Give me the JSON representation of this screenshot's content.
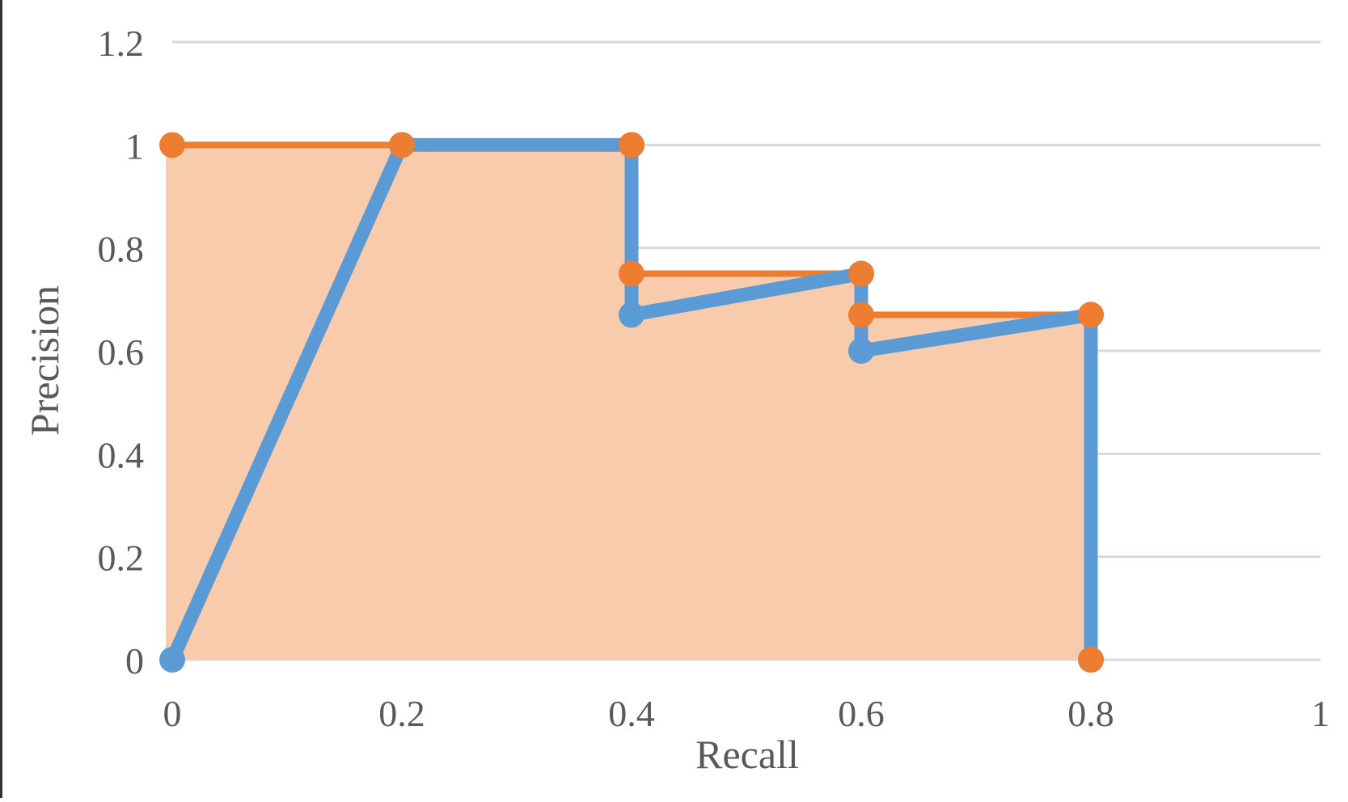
{
  "chart_data": {
    "type": "line",
    "title": "",
    "xlabel": "Recall",
    "ylabel": "Precision",
    "xlim": [
      0,
      1
    ],
    "ylim": [
      0,
      1.2
    ],
    "x_ticks": [
      0,
      0.2,
      0.4,
      0.6,
      0.8,
      1
    ],
    "x_tick_labels": [
      "0",
      "0.2",
      "0.4",
      "0.6",
      "0.8",
      "1"
    ],
    "y_ticks": [
      0,
      0.2,
      0.4,
      0.6,
      0.8,
      1,
      1.2
    ],
    "y_tick_labels": [
      "0",
      "0.2",
      "0.4",
      "0.6",
      "0.8",
      "1",
      "1.2"
    ],
    "grid": "horizontal",
    "legend": "none",
    "series": [
      {
        "style": "area-outline",
        "color": "#ed7d31",
        "fill": "#f8cbad",
        "points": [
          {
            "x": 0,
            "y": 1
          },
          {
            "x": 0.2,
            "y": 1
          },
          {
            "x": 0.4,
            "y": 1
          },
          {
            "x": 0.4,
            "y": 0.75
          },
          {
            "x": 0.6,
            "y": 0.75
          },
          {
            "x": 0.6,
            "y": 0.67
          },
          {
            "x": 0.8,
            "y": 0.67
          },
          {
            "x": 0.8,
            "y": 0
          }
        ]
      },
      {
        "style": "line",
        "color": "#5b9bd5",
        "points": [
          {
            "x": 0,
            "y": 0
          },
          {
            "x": 0.2,
            "y": 1
          },
          {
            "x": 0.4,
            "y": 1
          },
          {
            "x": 0.4,
            "y": 0.67
          },
          {
            "x": 0.6,
            "y": 0.75
          },
          {
            "x": 0.6,
            "y": 0.6
          },
          {
            "x": 0.8,
            "y": 0.67
          },
          {
            "x": 0.8,
            "y": 0
          }
        ]
      }
    ]
  }
}
